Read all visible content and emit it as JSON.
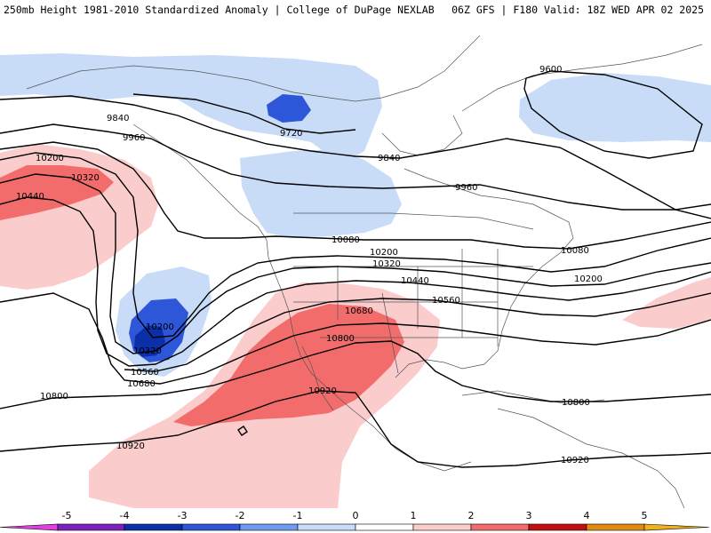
{
  "header": {
    "title_left": "250mb Height 1981-2010 Standardized Anomaly | College of DuPage NEXLAB",
    "title_right": "06Z GFS | F180 Valid: 18Z WED APR 02 2025"
  },
  "colorbar": {
    "ticks": [
      "-5",
      "-4",
      "-3",
      "-2",
      "-1",
      "0",
      "1",
      "2",
      "3",
      "4",
      "5"
    ],
    "colors": [
      "#e040e0",
      "#7e1fc0",
      "#0b2fa8",
      "#2e56d8",
      "#6f9bf0",
      "#c8dcf7",
      "#ffffff",
      "#fbcccc",
      "#f26c6c",
      "#c01010",
      "#e08a10",
      "#f0b020"
    ]
  },
  "map": {
    "anomaly_colors": {
      "light_blue": "#c8dcf7",
      "blue": "#6f9bf0",
      "dark_blue": "#2e56d8",
      "navy": "#0b2fa8",
      "light_pink": "#fbcccc",
      "red": "#f26c6c"
    },
    "contour_labels": [
      {
        "text": "9600"
      },
      {
        "text": "9720"
      },
      {
        "text": "9840"
      },
      {
        "text": "9840"
      },
      {
        "text": "9960"
      },
      {
        "text": "9960"
      },
      {
        "text": "10080"
      },
      {
        "text": "10080"
      },
      {
        "text": "10200"
      },
      {
        "text": "10200"
      },
      {
        "text": "10200"
      },
      {
        "text": "10200"
      },
      {
        "text": "10320"
      },
      {
        "text": "10320"
      },
      {
        "text": "10320"
      },
      {
        "text": "10440"
      },
      {
        "text": "10440"
      },
      {
        "text": "10560"
      },
      {
        "text": "10560"
      },
      {
        "text": "10680"
      },
      {
        "text": "10680"
      },
      {
        "text": "10800"
      },
      {
        "text": "10800"
      },
      {
        "text": "10800"
      },
      {
        "text": "10920"
      },
      {
        "text": "10920"
      },
      {
        "text": "10920"
      }
    ]
  }
}
